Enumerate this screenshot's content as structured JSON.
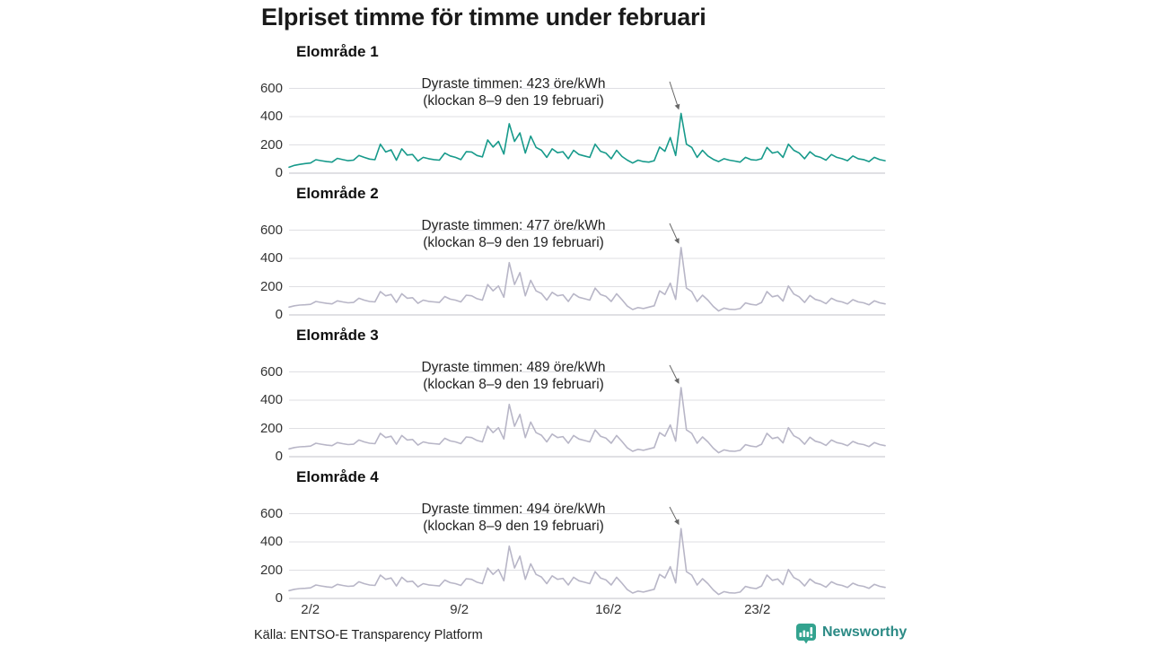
{
  "title": "Elpriset timme för timme under februari",
  "source": "Källa: ENTSO-E Transparency Platform",
  "brand": {
    "name": "Newsworthy",
    "icon": "bar-chart-bubble-icon",
    "icon_color": "#33a38f",
    "text_color": "#2b8a85"
  },
  "colors": {
    "area1_line": "#179a8b",
    "other_line": "#b8b6c7",
    "grid": "#dfdfe3",
    "zero_axis": "#c2c2c8",
    "arrow": "#666666",
    "tick_text": "#333333"
  },
  "chart_data": {
    "type": "line",
    "title": "Elpriset timme för timme under februari",
    "unit": "öre/kWh",
    "x_range": "1–28 februari, timvärden (samplade var 6:e timme)",
    "days": 28,
    "samples_per_day": 4,
    "x_tick_labels": [
      "2/2",
      "9/2",
      "16/2",
      "23/2"
    ],
    "x_tick_days": [
      2,
      9,
      16,
      23
    ],
    "ylim": [
      0,
      600
    ],
    "y_ticks": [
      600,
      400,
      200,
      0
    ],
    "grid": true,
    "legend": "none (panel titles above each small multiple)",
    "series": [
      {
        "name": "Elområde 1",
        "color": "#179a8b",
        "peak_value": 423,
        "peak_day": 19,
        "annotation_line1": "Dyraste timmen: 423 öre/kWh",
        "annotation_line2": "(klockan 8–9 den 19 februari)",
        "values": [
          42,
          55,
          62,
          68,
          72,
          95,
          88,
          82,
          78,
          105,
          96,
          88,
          92,
          125,
          112,
          100,
          95,
          205,
          150,
          165,
          92,
          172,
          128,
          132,
          86,
          112,
          102,
          96,
          92,
          142,
          122,
          112,
          96,
          152,
          150,
          125,
          115,
          235,
          185,
          225,
          135,
          350,
          225,
          285,
          142,
          262,
          182,
          162,
          112,
          172,
          145,
          152,
          102,
          162,
          132,
          122,
          112,
          205,
          155,
          142,
          102,
          162,
          118,
          92,
          72,
          92,
          82,
          78,
          88,
          185,
          155,
          252,
          125,
          423,
          205,
          182,
          112,
          162,
          122,
          98,
          82,
          102,
          92,
          86,
          78,
          112,
          96,
          92,
          102,
          182,
          142,
          152,
          112,
          205,
          162,
          142,
          102,
          152,
          122,
          112,
          92,
          132,
          112,
          102,
          88,
          122,
          102,
          96,
          82,
          112,
          96,
          88
        ]
      },
      {
        "name": "Elområde 2",
        "color": "#b8b6c7",
        "peak_value": 477,
        "peak_day": 19,
        "annotation_line1": "Dyraste timmen: 477 öre/kWh",
        "annotation_line2": "(klockan 8–9 den 19 februari)",
        "values": [
          55,
          65,
          70,
          72,
          75,
          95,
          88,
          82,
          78,
          100,
          92,
          86,
          88,
          118,
          105,
          95,
          92,
          165,
          135,
          145,
          88,
          150,
          118,
          122,
          82,
          105,
          96,
          92,
          88,
          130,
          112,
          105,
          92,
          140,
          135,
          115,
          105,
          215,
          170,
          205,
          125,
          370,
          215,
          300,
          135,
          245,
          170,
          152,
          105,
          160,
          135,
          142,
          95,
          150,
          125,
          115,
          105,
          190,
          145,
          132,
          95,
          150,
          108,
          62,
          38,
          52,
          45,
          55,
          65,
          170,
          145,
          225,
          110,
          477,
          190,
          165,
          95,
          140,
          105,
          60,
          28,
          48,
          40,
          38,
          45,
          85,
          75,
          70,
          88,
          165,
          128,
          138,
          98,
          205,
          148,
          128,
          88,
          138,
          110,
          100,
          80,
          118,
          100,
          92,
          78,
          108,
          92,
          86,
          72,
          100,
          86,
          78
        ]
      },
      {
        "name": "Elområde 3",
        "color": "#b8b6c7",
        "peak_value": 489,
        "peak_day": 19,
        "annotation_line1": "Dyraste timmen: 489 öre/kWh",
        "annotation_line2": "(klockan 8–9 den 19 februari)",
        "values": [
          55,
          65,
          70,
          72,
          75,
          95,
          88,
          82,
          78,
          100,
          92,
          86,
          88,
          118,
          105,
          95,
          92,
          165,
          135,
          145,
          88,
          150,
          118,
          122,
          82,
          105,
          96,
          92,
          88,
          130,
          112,
          105,
          92,
          140,
          135,
          115,
          105,
          215,
          170,
          205,
          125,
          370,
          215,
          300,
          135,
          245,
          170,
          152,
          105,
          160,
          135,
          142,
          95,
          150,
          125,
          115,
          105,
          190,
          145,
          132,
          95,
          150,
          108,
          62,
          38,
          52,
          45,
          55,
          65,
          170,
          145,
          225,
          110,
          489,
          190,
          165,
          95,
          140,
          105,
          60,
          28,
          48,
          40,
          38,
          45,
          85,
          75,
          70,
          88,
          165,
          128,
          138,
          98,
          205,
          148,
          128,
          88,
          138,
          110,
          100,
          80,
          118,
          100,
          92,
          78,
          108,
          92,
          86,
          72,
          100,
          86,
          78
        ]
      },
      {
        "name": "Elområde 4",
        "color": "#b8b6c7",
        "peak_value": 494,
        "peak_day": 19,
        "annotation_line1": "Dyraste timmen: 494 öre/kWh",
        "annotation_line2": "(klockan 8–9 den 19 februari)",
        "values": [
          55,
          65,
          70,
          72,
          75,
          95,
          88,
          82,
          78,
          100,
          92,
          86,
          88,
          118,
          105,
          95,
          92,
          165,
          135,
          145,
          88,
          150,
          118,
          122,
          82,
          105,
          96,
          92,
          88,
          130,
          112,
          105,
          92,
          140,
          135,
          115,
          105,
          215,
          170,
          205,
          125,
          370,
          215,
          300,
          135,
          245,
          170,
          152,
          105,
          160,
          135,
          142,
          95,
          150,
          125,
          115,
          105,
          190,
          145,
          132,
          95,
          150,
          108,
          62,
          38,
          52,
          45,
          55,
          65,
          170,
          145,
          225,
          110,
          494,
          190,
          165,
          95,
          140,
          105,
          60,
          28,
          48,
          40,
          38,
          45,
          85,
          75,
          70,
          88,
          165,
          128,
          138,
          98,
          205,
          148,
          128,
          88,
          138,
          110,
          100,
          80,
          118,
          100,
          92,
          78,
          108,
          92,
          86,
          72,
          100,
          86,
          78
        ]
      }
    ]
  }
}
